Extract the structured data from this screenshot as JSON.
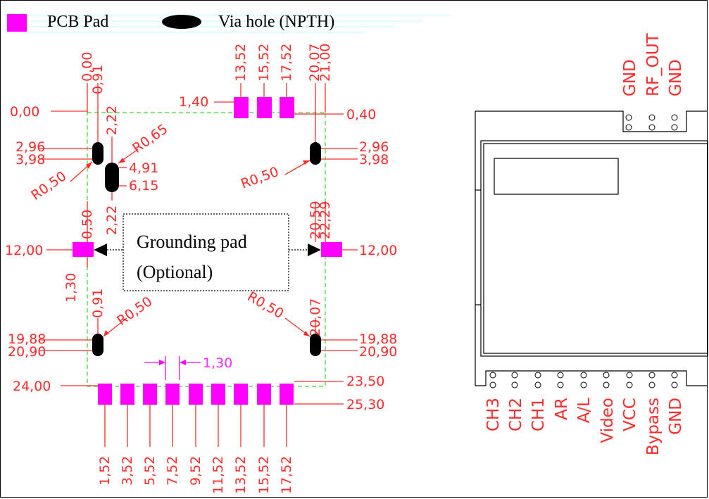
{
  "legend": {
    "pcb_pad_label": "PCB Pad",
    "via_hole_label": "Via hole (NPTH)",
    "pad_color": "#ff00ff",
    "line_color": "#ff2a2a"
  },
  "callout": {
    "line1": "Grounding pad",
    "line2": "(Optional)"
  },
  "top_dims": [
    "0,00",
    "0,91",
    "13,52",
    "15,52",
    "17,52",
    "20,07",
    "21,00"
  ],
  "left_dims": {
    "d0": "0,00",
    "d1": "1,40",
    "d2": "2,96",
    "d3": "3,98",
    "d4": "12,00",
    "d5": "19,88",
    "d6": "20,90",
    "d7": "24,00"
  },
  "right_dims": {
    "d0": "0,40",
    "d1": "2,96",
    "d2": "3,98",
    "d3": "12,00",
    "d4": "19,88",
    "d5": "20,90",
    "d6": "23,50",
    "d7": "25,30"
  },
  "inner_dims": {
    "r065": "R0,65",
    "r050_tl": "R0,50",
    "r050_tr": "R0,50",
    "r050_bl": "R0,50",
    "r050_br": "R0,50",
    "v222a": "2,22",
    "v222b": "2,22",
    "d491": "4,91",
    "d615": "6,15",
    "v050a": "0,50",
    "v130": "1,30",
    "v091": "0,91",
    "v2050": "20,50",
    "v2229": "22,29",
    "v2007": "20,07",
    "pitch": "1,30"
  },
  "bottom_dims": [
    "1,52",
    "3,52",
    "5,52",
    "7,52",
    "9,52",
    "11,52",
    "13,52",
    "15,52",
    "17,52"
  ],
  "module_pins": {
    "top": [
      "GND",
      "RF_OUT",
      "GND"
    ],
    "bottom": [
      "CH3",
      "CH2",
      "CH1",
      "AR",
      "A/L",
      "Video",
      "VCC",
      "Bypass",
      "GND"
    ]
  }
}
